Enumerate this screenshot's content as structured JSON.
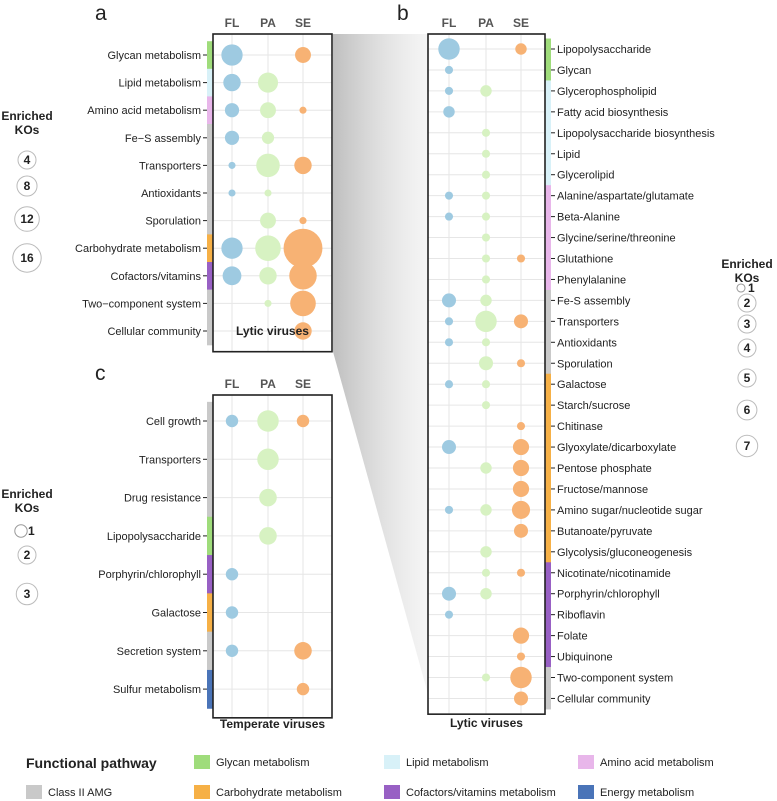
{
  "colors": {
    "FL": "#9ecae1",
    "PA": "#d7f2c2",
    "SE": "#f7b274",
    "category": {
      "glycan": "#9fdc7b",
      "lipid": "#d8f1f8",
      "amino": "#e8b6ea",
      "carbo": "#f6b046",
      "cofactor": "#9860c4",
      "energy": "#4a74b8",
      "class2": "#c9c9c9"
    }
  },
  "chart_data": [
    {
      "panel": "a",
      "type": "scatter",
      "title": "Lytic viruses",
      "columns": [
        "FL",
        "PA",
        "SE"
      ],
      "rows": [
        {
          "label": "Glycan metabolism",
          "category": "glycan",
          "values": [
            9,
            0,
            5
          ]
        },
        {
          "label": "Lipid metabolism",
          "category": "lipid",
          "values": [
            6,
            8,
            0
          ]
        },
        {
          "label": "Amino acid metabolism",
          "category": "amino",
          "values": [
            4,
            5,
            1
          ]
        },
        {
          "label": "Fe−S assembly",
          "category": "class2",
          "values": [
            4,
            3,
            0
          ]
        },
        {
          "label": "Transporters",
          "category": "class2",
          "values": [
            1,
            11,
            6
          ]
        },
        {
          "label": "Antioxidants",
          "category": "class2",
          "values": [
            1,
            1,
            0
          ]
        },
        {
          "label": "Sporulation",
          "category": "class2",
          "values": [
            0,
            5,
            1
          ]
        },
        {
          "label": "Carbohydrate metabolism",
          "category": "carbo",
          "values": [
            9,
            13,
            30
          ]
        },
        {
          "label": "Cofactors/vitamins",
          "category": "cofactor",
          "values": [
            7,
            6,
            15
          ]
        },
        {
          "label": "Two−component system",
          "category": "class2",
          "values": [
            0,
            1,
            13
          ]
        },
        {
          "label": "Cellular community",
          "category": "class2",
          "values": [
            0,
            0,
            6
          ]
        }
      ]
    },
    {
      "panel": "b",
      "type": "scatter",
      "title": "Lytic viruses",
      "columns": [
        "FL",
        "PA",
        "SE"
      ],
      "rows": [
        {
          "label": "Lipopolysaccharide",
          "category": "glycan",
          "values": [
            7,
            0,
            2
          ]
        },
        {
          "label": "Glycan",
          "category": "glycan",
          "values": [
            1,
            0,
            0
          ]
        },
        {
          "label": "Glycerophospholipid",
          "category": "lipid",
          "values": [
            1,
            2,
            0
          ]
        },
        {
          "label": "Fatty acid biosynthesis",
          "category": "lipid",
          "values": [
            2,
            0,
            0
          ]
        },
        {
          "label": "Lipopolysaccharide biosynthesis",
          "category": "lipid",
          "values": [
            0,
            1,
            0
          ]
        },
        {
          "label": "Lipid",
          "category": "lipid",
          "values": [
            0,
            1,
            0
          ]
        },
        {
          "label": "Glycerolipid",
          "category": "lipid",
          "values": [
            0,
            1,
            0
          ]
        },
        {
          "label": "Alanine/aspartate/glutamate",
          "category": "amino",
          "values": [
            1,
            1,
            0
          ]
        },
        {
          "label": "Beta-Alanine",
          "category": "amino",
          "values": [
            1,
            1,
            0
          ]
        },
        {
          "label": "Glycine/serine/threonine",
          "category": "amino",
          "values": [
            0,
            1,
            0
          ]
        },
        {
          "label": "Glutathione",
          "category": "amino",
          "values": [
            0,
            1,
            1
          ]
        },
        {
          "label": "Phenylalanine",
          "category": "amino",
          "values": [
            0,
            1,
            0
          ]
        },
        {
          "label": "Fe-S assembly",
          "category": "class2",
          "values": [
            3,
            2,
            0
          ]
        },
        {
          "label": "Transporters",
          "category": "class2",
          "values": [
            1,
            7,
            3
          ]
        },
        {
          "label": "Antioxidants",
          "category": "class2",
          "values": [
            1,
            1,
            0
          ]
        },
        {
          "label": "Sporulation",
          "category": "class2",
          "values": [
            0,
            3,
            1
          ]
        },
        {
          "label": "Galactose",
          "category": "carbo",
          "values": [
            1,
            1,
            0
          ]
        },
        {
          "label": "Starch/sucrose",
          "category": "carbo",
          "values": [
            0,
            1,
            0
          ]
        },
        {
          "label": "Chitinase",
          "category": "carbo",
          "values": [
            0,
            0,
            1
          ]
        },
        {
          "label": "Glyoxylate/dicarboxylate",
          "category": "carbo",
          "values": [
            3,
            0,
            4
          ]
        },
        {
          "label": "Pentose phosphate",
          "category": "carbo",
          "values": [
            0,
            2,
            4
          ]
        },
        {
          "label": "Fructose/mannose",
          "category": "carbo",
          "values": [
            0,
            0,
            4
          ]
        },
        {
          "label": "Amino sugar/nucleotide sugar",
          "category": "carbo",
          "values": [
            1,
            2,
            5
          ]
        },
        {
          "label": "Butanoate/pyruvate",
          "category": "carbo",
          "values": [
            0,
            0,
            3
          ]
        },
        {
          "label": "Glycolysis/gluconeogenesis",
          "category": "carbo",
          "values": [
            0,
            2,
            0
          ]
        },
        {
          "label": "Nicotinate/nicotinamide",
          "category": "cofactor",
          "values": [
            0,
            1,
            1
          ]
        },
        {
          "label": "Porphyrin/chlorophyll",
          "category": "cofactor",
          "values": [
            3,
            2,
            0
          ]
        },
        {
          "label": "Riboflavin",
          "category": "cofactor",
          "values": [
            1,
            0,
            0
          ]
        },
        {
          "label": "Folate",
          "category": "cofactor",
          "values": [
            0,
            0,
            4
          ]
        },
        {
          "label": "Ubiquinone",
          "category": "cofactor",
          "values": [
            0,
            0,
            1
          ]
        },
        {
          "label": "Two-component system",
          "category": "class2",
          "values": [
            0,
            1,
            7
          ]
        },
        {
          "label": "Cellular community",
          "category": "class2",
          "values": [
            0,
            0,
            3
          ]
        }
      ]
    },
    {
      "panel": "c",
      "type": "scatter",
      "title": "Temperate viruses",
      "columns": [
        "FL",
        "PA",
        "SE"
      ],
      "rows": [
        {
          "label": "Cell growth",
          "category": "class2",
          "values": [
            1,
            3,
            1
          ]
        },
        {
          "label": "Transporters",
          "category": "class2",
          "values": [
            0,
            3,
            0
          ]
        },
        {
          "label": "Drug resistance",
          "category": "class2",
          "values": [
            0,
            2,
            0
          ]
        },
        {
          "label": "Lipopolysaccharide",
          "category": "glycan",
          "values": [
            0,
            2,
            0
          ]
        },
        {
          "label": "Porphyrin/chlorophyll",
          "category": "cofactor",
          "values": [
            1,
            0,
            0
          ]
        },
        {
          "label": "Galactose",
          "category": "carbo",
          "values": [
            1,
            0,
            0
          ]
        },
        {
          "label": "Secretion system",
          "category": "class2",
          "values": [
            1,
            0,
            2
          ]
        },
        {
          "label": "Sulfur metabolism",
          "category": "energy",
          "values": [
            0,
            0,
            1
          ]
        }
      ]
    }
  ],
  "size_legends": [
    {
      "title": "Enriched KOs",
      "values": [
        4,
        8,
        12,
        16
      ]
    },
    {
      "title": "Enriched KOs",
      "values": [
        1,
        2,
        3,
        4,
        5,
        6,
        7
      ]
    },
    {
      "title": "Enriched KOs",
      "values": [
        1,
        2,
        3
      ]
    }
  ],
  "legend": {
    "title": "Functional pathway",
    "items": [
      {
        "key": "glycan",
        "label": "Glycan metabolism"
      },
      {
        "key": "lipid",
        "label": "Lipid metabolism"
      },
      {
        "key": "amino",
        "label": "Amino acid metabolism"
      },
      {
        "key": "class2",
        "label": "Class II AMG"
      },
      {
        "key": "carbo",
        "label": "Carbohydrate metabolism"
      },
      {
        "key": "cofactor",
        "label": "Cofactors/vitamins metabolism"
      },
      {
        "key": "energy",
        "label": "Energy metabolism"
      }
    ]
  }
}
